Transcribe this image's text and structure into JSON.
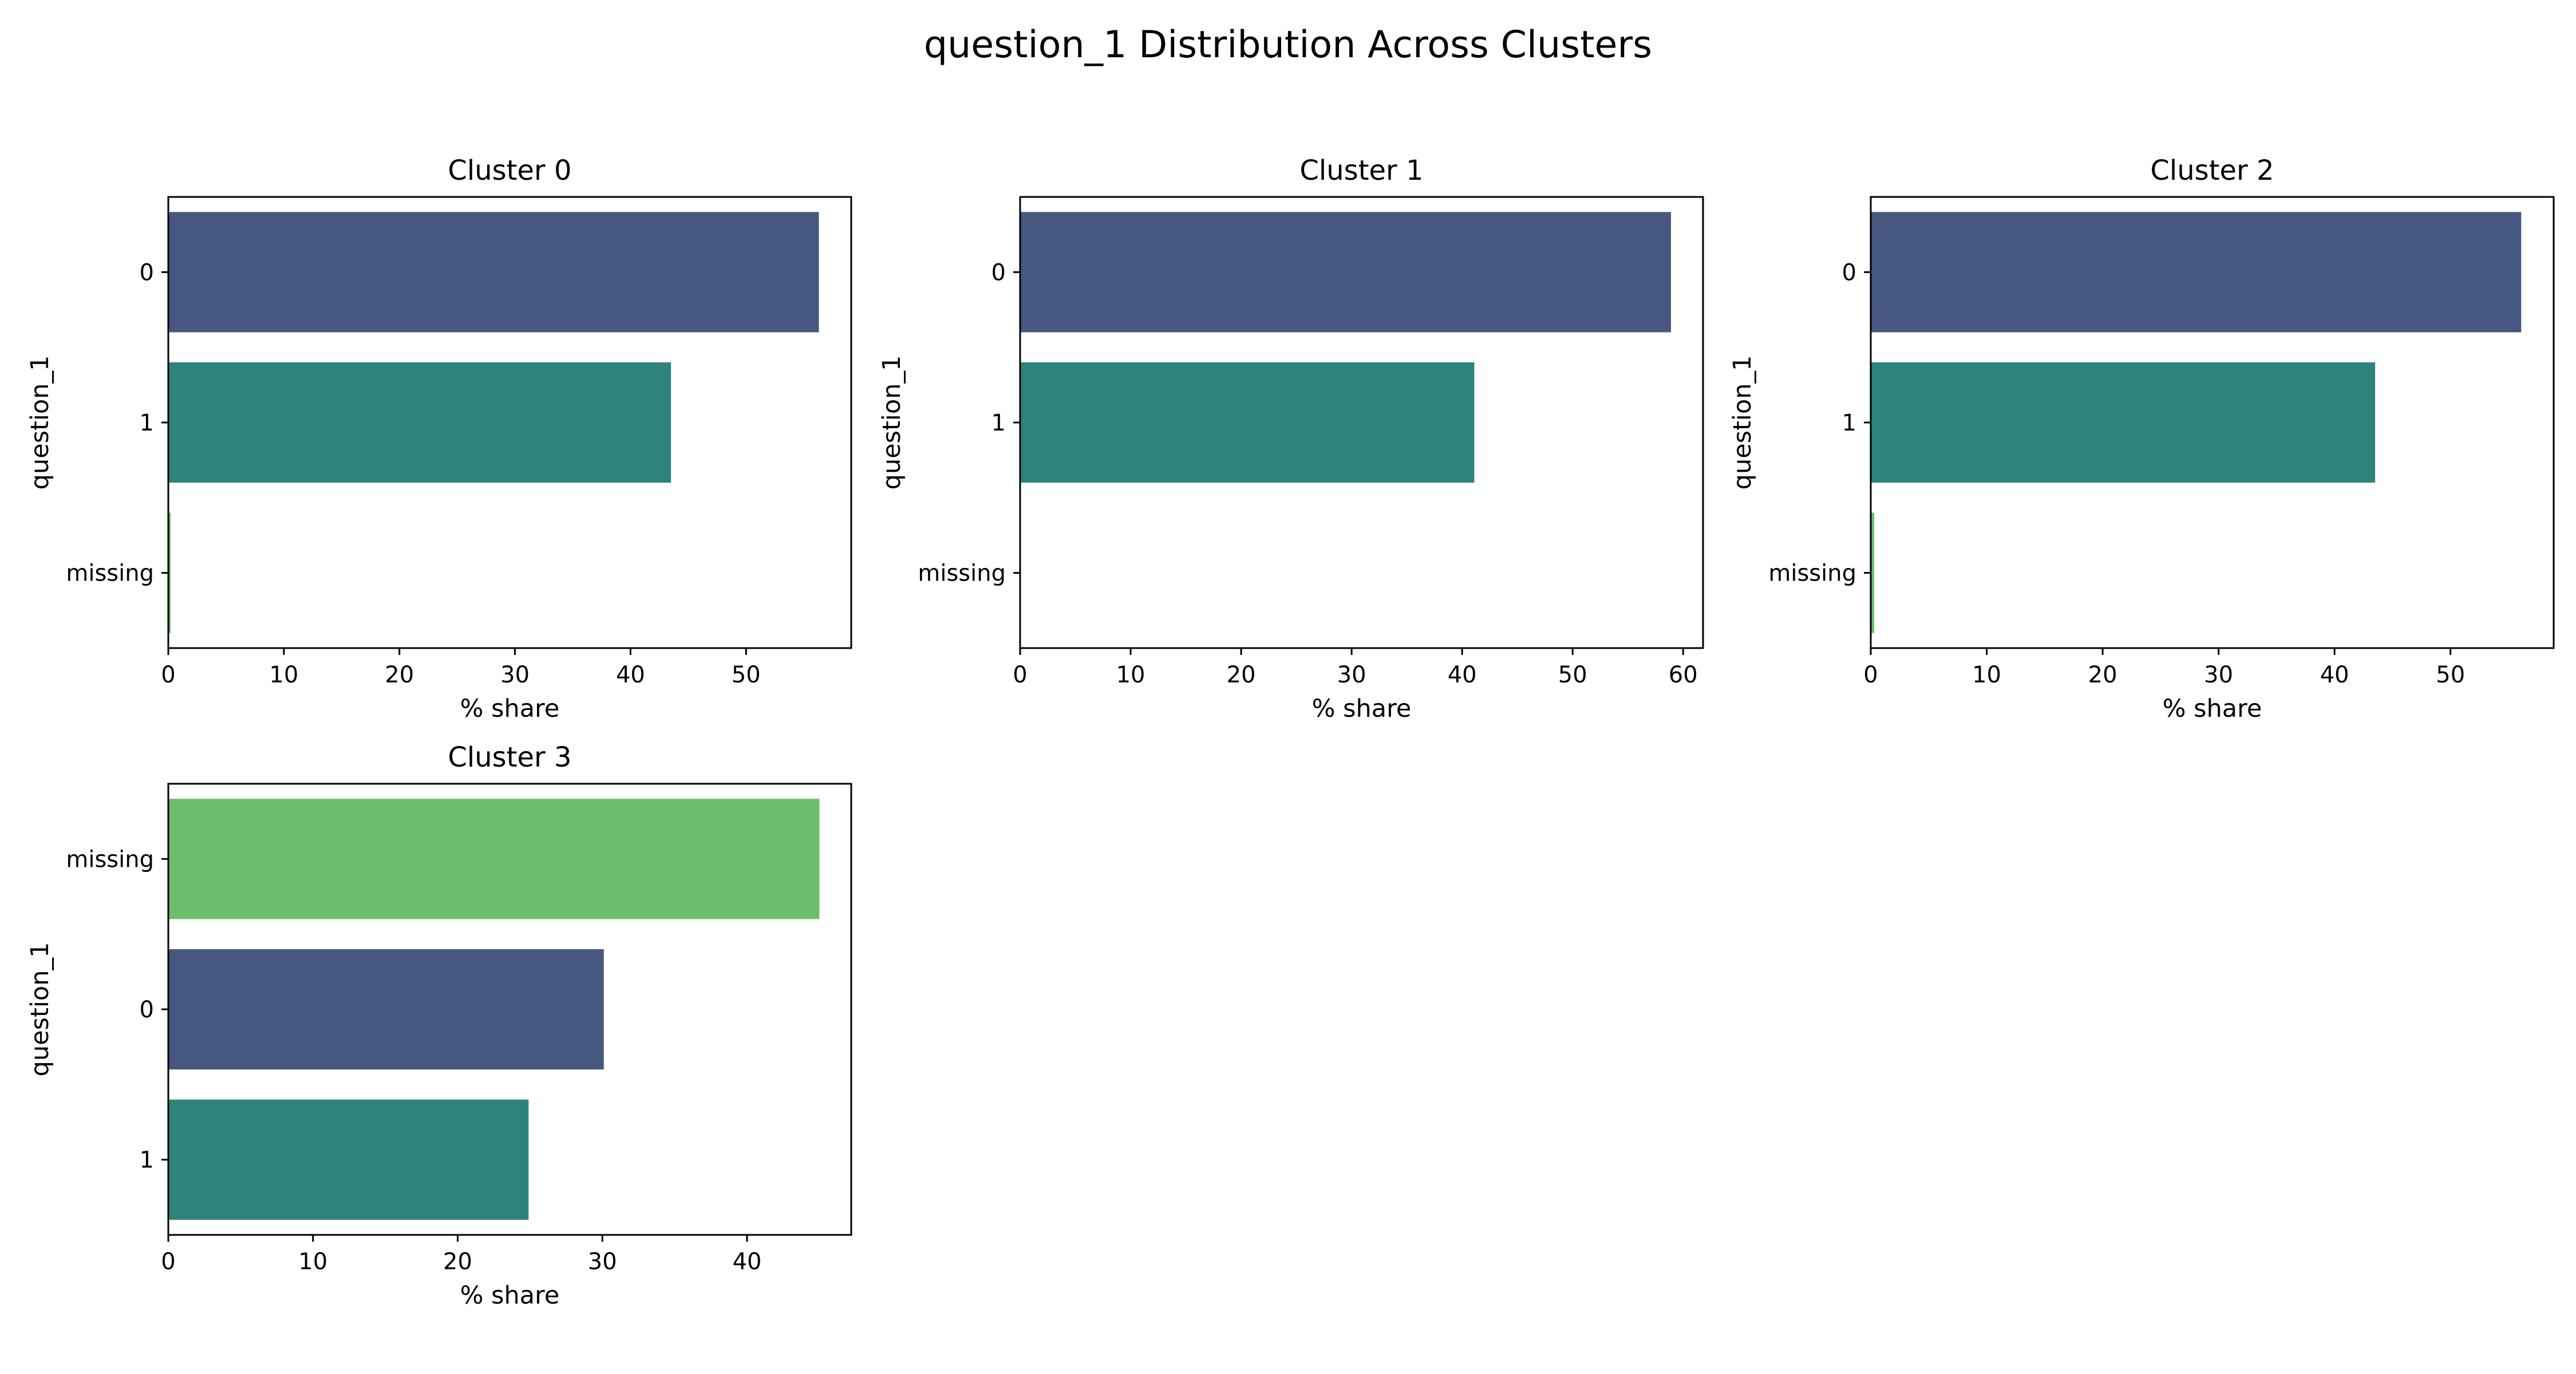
{
  "title": "question_1 Distribution Across Clusters",
  "colors": {
    "0": "#46587f",
    "1": "#2e837c",
    "missing": "#6dbe6c"
  },
  "chart_data": [
    {
      "type": "bar",
      "orientation": "horizontal",
      "title": "Cluster 0",
      "xlabel": "% share",
      "ylabel": "question_1",
      "categories": [
        "0",
        "1",
        "missing"
      ],
      "values": [
        56.3,
        43.5,
        0.2
      ],
      "xlim": [
        0,
        59.1
      ],
      "xticks": [
        0,
        10,
        20,
        30,
        40,
        50
      ]
    },
    {
      "type": "bar",
      "orientation": "horizontal",
      "title": "Cluster 1",
      "xlabel": "% share",
      "ylabel": "question_1",
      "categories": [
        "0",
        "1",
        "missing"
      ],
      "values": [
        58.9,
        41.1,
        0.0
      ],
      "xlim": [
        0,
        61.8
      ],
      "xticks": [
        0,
        10,
        20,
        30,
        40,
        50,
        60
      ]
    },
    {
      "type": "bar",
      "orientation": "horizontal",
      "title": "Cluster 2",
      "xlabel": "% share",
      "ylabel": "question_1",
      "categories": [
        "0",
        "1",
        "missing"
      ],
      "values": [
        56.1,
        43.5,
        0.3
      ],
      "xlim": [
        0,
        58.9
      ],
      "xticks": [
        0,
        10,
        20,
        30,
        40,
        50
      ]
    },
    {
      "type": "bar",
      "orientation": "horizontal",
      "title": "Cluster 3",
      "xlabel": "% share",
      "ylabel": "question_1",
      "categories": [
        "missing",
        "0",
        "1"
      ],
      "values": [
        45.0,
        30.1,
        24.9
      ],
      "xlim": [
        0,
        47.2
      ],
      "xticks": [
        0,
        10,
        20,
        30,
        40
      ]
    }
  ]
}
